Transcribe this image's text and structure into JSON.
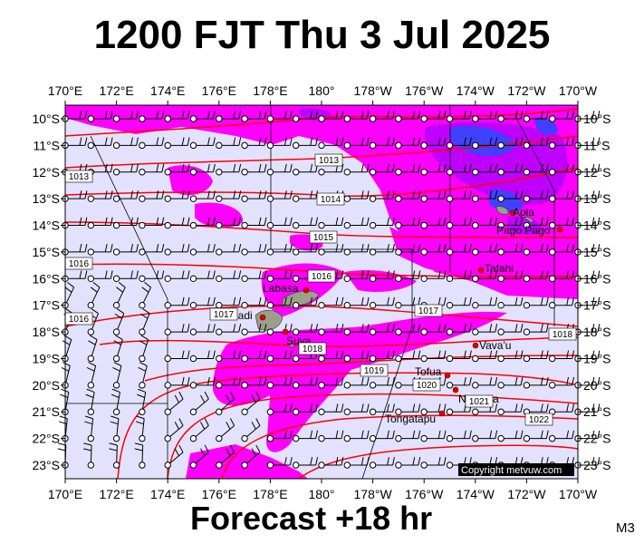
{
  "title": "1200 FJT Thu 3 Jul 2025",
  "footer": "Forecast +18 hr",
  "model": "M3",
  "copyright": "Copyright metvuw.com",
  "map": {
    "lon_labels": [
      "170°E",
      "172°E",
      "174°E",
      "176°E",
      "178°E",
      "180°",
      "178°W",
      "176°W",
      "174°W",
      "172°W",
      "170°W"
    ],
    "lat_labels": [
      "10°S",
      "11°S",
      "12°S",
      "13°S",
      "14°S",
      "15°S",
      "16°S",
      "17°S",
      "18°S",
      "19°S",
      "20°S",
      "21°S",
      "22°S",
      "23°S"
    ],
    "lat_labels_right": [
      "10°S",
      "11°S",
      "12°S",
      "13°S",
      "14°S",
      "15°S",
      "16°S",
      "17°S",
      "18°S",
      "19°S",
      "20°S",
      "21°S",
      "22°S",
      "23°S"
    ],
    "isobar_labels": [
      "1013",
      "1013",
      "1014",
      "1015",
      "1016",
      "1016",
      "1016",
      "1017",
      "1017",
      "1018",
      "1018",
      "1019",
      "1020",
      "1021",
      "1022"
    ],
    "places": [
      "Apia",
      "Pago Pago",
      "Tafahi",
      "Labasa",
      "Nadi",
      "Suva",
      "Vava'u",
      "Tofua",
      "Nomuka",
      "Tongatapu"
    ],
    "colors": {
      "background": "#e2e2ff",
      "rain_light": "#ff00ff",
      "rain_medium": "#c000ff",
      "rain_heavy": "#4040ff",
      "isobar": "#ff0000",
      "land": "#9aa08a"
    }
  }
}
